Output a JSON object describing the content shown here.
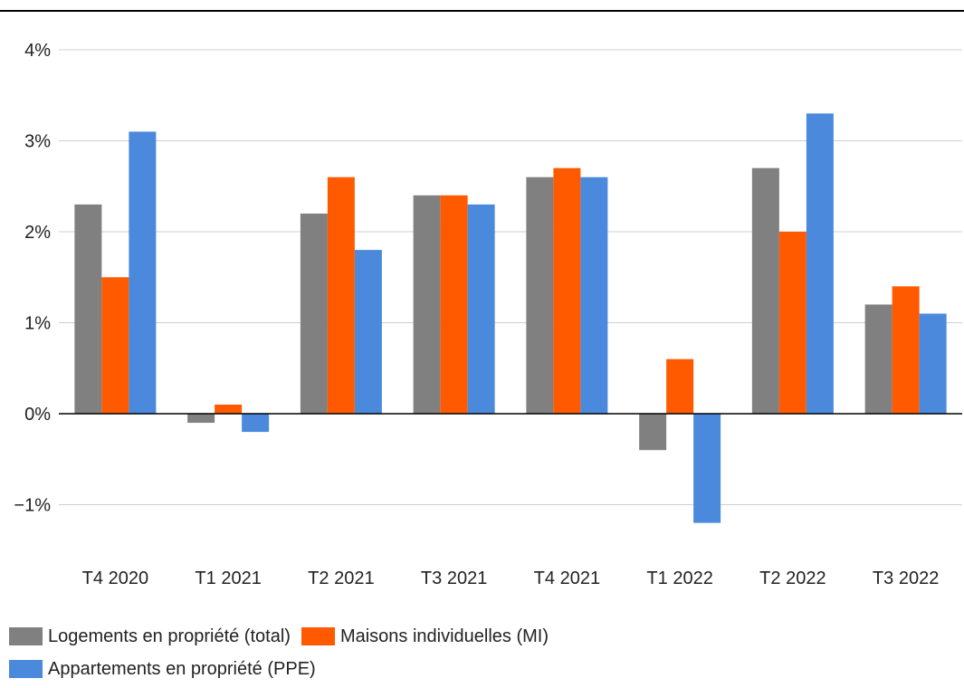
{
  "chart_data": {
    "type": "bar",
    "categories": [
      "T4 2020",
      "T1 2021",
      "T2 2021",
      "T3 2021",
      "T4 2021",
      "T1 2022",
      "T2 2022",
      "T3 2022"
    ],
    "series": [
      {
        "name": "Logements en propriété (total)",
        "color": "#808080",
        "values": [
          2.3,
          -0.1,
          2.2,
          2.4,
          2.6,
          -0.4,
          2.7,
          1.2
        ]
      },
      {
        "name": "Maisons individuelles (MI)",
        "color": "#ff5a00",
        "values": [
          1.5,
          0.1,
          2.6,
          2.4,
          2.7,
          0.6,
          2.0,
          1.4
        ]
      },
      {
        "name": "Appartements en propriété (PPE)",
        "color": "#4a89dc",
        "values": [
          3.1,
          -0.2,
          1.8,
          2.3,
          2.6,
          -1.2,
          3.3,
          1.1
        ]
      }
    ],
    "y_ticks": [
      4,
      3,
      2,
      1,
      0,
      -1
    ],
    "y_tick_labels": [
      "4%",
      "3%",
      "2%",
      "1%",
      "0%",
      "−1%"
    ],
    "ylim": [
      -1.5,
      4
    ],
    "unit": "%",
    "grid": true,
    "legend_position": "bottom-left"
  }
}
